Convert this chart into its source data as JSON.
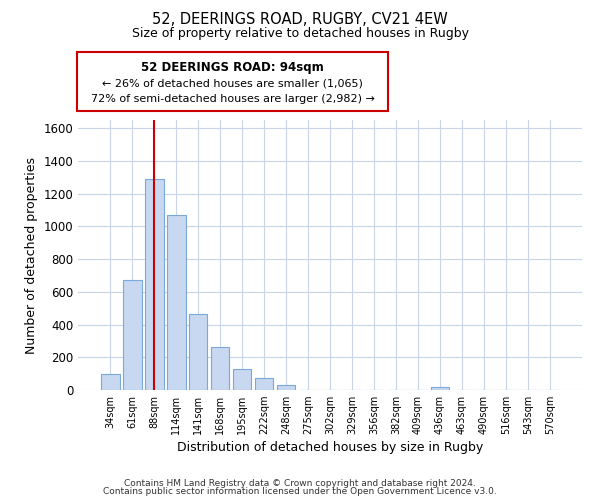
{
  "title": "52, DEERINGS ROAD, RUGBY, CV21 4EW",
  "subtitle": "Size of property relative to detached houses in Rugby",
  "xlabel": "Distribution of detached houses by size in Rugby",
  "ylabel": "Number of detached properties",
  "bar_labels": [
    "34sqm",
    "61sqm",
    "88sqm",
    "114sqm",
    "141sqm",
    "168sqm",
    "195sqm",
    "222sqm",
    "248sqm",
    "275sqm",
    "302sqm",
    "329sqm",
    "356sqm",
    "382sqm",
    "409sqm",
    "436sqm",
    "463sqm",
    "490sqm",
    "516sqm",
    "543sqm",
    "570sqm"
  ],
  "bar_values": [
    100,
    670,
    1290,
    1070,
    465,
    265,
    130,
    75,
    30,
    0,
    0,
    0,
    0,
    0,
    0,
    20,
    0,
    0,
    0,
    0,
    0
  ],
  "bar_color": "#c8d8f0",
  "bar_edge_color": "#7aa8d8",
  "ylim": [
    0,
    1650
  ],
  "yticks": [
    0,
    200,
    400,
    600,
    800,
    1000,
    1200,
    1400,
    1600
  ],
  "vline_x_index": 2,
  "vline_color": "#cc0000",
  "annotation_title": "52 DEERINGS ROAD: 94sqm",
  "annotation_line1": "← 26% of detached houses are smaller (1,065)",
  "annotation_line2": "72% of semi-detached houses are larger (2,982) →",
  "footer_line1": "Contains HM Land Registry data © Crown copyright and database right 2024.",
  "footer_line2": "Contains public sector information licensed under the Open Government Licence v3.0.",
  "background_color": "#ffffff",
  "grid_color": "#c8d4e8"
}
